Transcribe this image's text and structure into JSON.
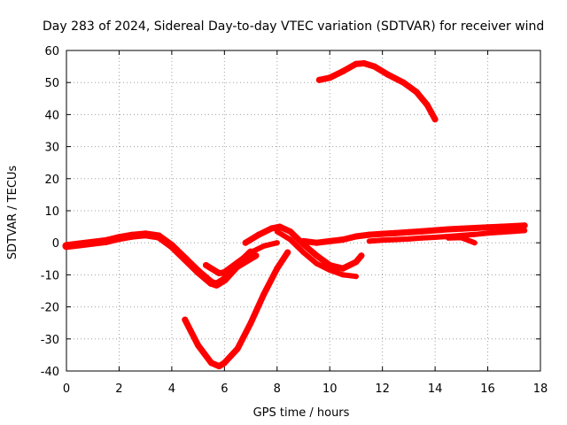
{
  "chart_data": {
    "type": "scatter",
    "title": "Day 283 of 2024, Sidereal Day-to-day VTEC variation (SDTVAR) for receiver wind",
    "xlabel": "GPS time / hours",
    "ylabel": "SDTVAR / TECUs",
    "xlim": [
      0,
      18
    ],
    "ylim": [
      -40,
      60
    ],
    "xticks": [
      0,
      2,
      4,
      6,
      8,
      10,
      12,
      14,
      16,
      18
    ],
    "yticks": [
      -40,
      -30,
      -20,
      -10,
      0,
      10,
      20,
      30,
      40,
      50,
      60
    ],
    "grid": true,
    "color": "#ff0000",
    "series": [
      {
        "name": "arc-main-0-to-7",
        "width": 9,
        "x": [
          0,
          0.5,
          1,
          1.5,
          2,
          2.5,
          3,
          3.5,
          4,
          4.5,
          5,
          5.5,
          5.7,
          6,
          6.5,
          7
        ],
        "y": [
          -1,
          -0.5,
          0,
          0.5,
          1.5,
          2.2,
          2.6,
          2,
          -1,
          -5,
          -9,
          -12.5,
          -13,
          -11.5,
          -7,
          -3
        ]
      },
      {
        "name": "arc-shallow-5-to-7",
        "width": 7,
        "x": [
          5.3,
          5.8,
          6.2,
          6.7,
          7.2
        ],
        "y": [
          -7,
          -9.5,
          -9,
          -6.5,
          -4
        ]
      },
      {
        "name": "arc-deep-dip",
        "width": 7,
        "x": [
          4.5,
          5,
          5.5,
          5.8,
          6,
          6.5,
          7,
          7.5,
          8,
          8.4
        ],
        "y": [
          -24,
          -32,
          -37.5,
          -38.5,
          -37.5,
          -33,
          -25,
          -16,
          -8,
          -3
        ]
      },
      {
        "name": "arc-hump-7-to-11",
        "width": 7,
        "x": [
          6.8,
          7.3,
          7.8,
          8.1,
          8.5,
          9,
          9.5,
          10,
          10.5,
          11,
          11.2
        ],
        "y": [
          0,
          2.5,
          4.5,
          5,
          3.5,
          -0.5,
          -4,
          -7,
          -8,
          -6,
          -4
        ]
      },
      {
        "name": "arc-rising-6-to-8",
        "width": 6,
        "x": [
          6,
          6.5,
          7,
          7.5,
          8
        ],
        "y": [
          -9,
          -6,
          -3,
          -1,
          0
        ]
      },
      {
        "name": "arc-low-8-to-11",
        "width": 6,
        "x": [
          8,
          8.5,
          9,
          9.5,
          10,
          10.5,
          11
        ],
        "y": [
          3.5,
          1,
          -3,
          -6.5,
          -8.5,
          -10,
          -10.5
        ]
      },
      {
        "name": "arc-upper-9-to-14",
        "width": 7,
        "x": [
          9.6,
          10,
          10.5,
          11,
          11.3,
          11.7,
          12.2,
          12.8,
          13.3,
          13.7,
          14
        ],
        "y": [
          50.8,
          51.5,
          53.5,
          55.8,
          56,
          55,
          52.5,
          50,
          47,
          43,
          38.5
        ]
      },
      {
        "name": "arc-right-cluster",
        "width": 7,
        "x": [
          9,
          9.5,
          10,
          10.5,
          11,
          11.5,
          12,
          12.5,
          13,
          13.5,
          14,
          14.5,
          15,
          15.5,
          16,
          16.5,
          17,
          17.4
        ],
        "y": [
          0.5,
          0,
          0.5,
          1,
          2,
          2.5,
          2.8,
          3,
          3.3,
          3.6,
          3.9,
          4.2,
          4.4,
          4.6,
          4.8,
          5,
          5.2,
          5.4
        ]
      },
      {
        "name": "arc-right-cluster-lower",
        "width": 6,
        "x": [
          11.5,
          12,
          12.5,
          13,
          13.5,
          14,
          14.5,
          15,
          15.5,
          16,
          16.5,
          17,
          17.4
        ],
        "y": [
          0.5,
          0.8,
          1,
          1.2,
          1.5,
          1.7,
          2,
          2.3,
          2.6,
          3,
          3.3,
          3.6,
          3.8
        ]
      },
      {
        "name": "arc-right-lower-ends",
        "width": 6,
        "x": [
          14.5,
          15,
          15.5
        ],
        "y": [
          1.5,
          1.6,
          0
        ]
      }
    ]
  }
}
